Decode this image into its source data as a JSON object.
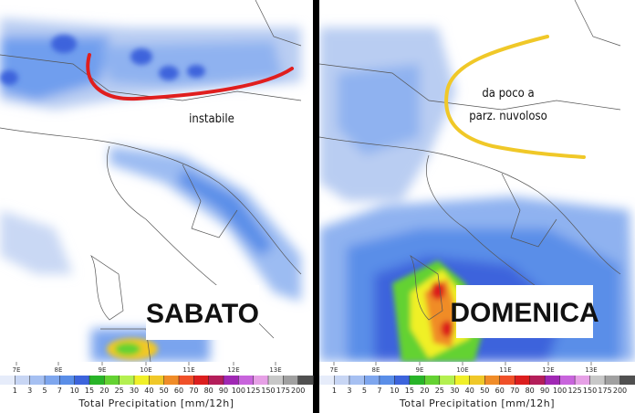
{
  "panels": [
    {
      "day_label": "SABATO",
      "annotation": [
        "instabile"
      ],
      "longitudes": [
        "7E",
        "8E",
        "9E",
        "10E",
        "11E",
        "12E",
        "13E"
      ],
      "colorbar": {
        "labels": [
          1,
          3,
          5,
          7,
          10,
          15,
          20,
          25,
          30,
          40,
          50,
          60,
          70,
          80,
          90,
          100,
          125,
          150,
          175,
          200
        ],
        "title": "Total Precipitation [mm/12h]"
      }
    },
    {
      "day_label": "DOMENICA",
      "annotation": [
        "da poco a",
        "parz. nuvoloso"
      ],
      "longitudes": [
        "7E",
        "8E",
        "9E",
        "10E",
        "11E",
        "12E",
        "13E"
      ],
      "colorbar": {
        "labels": [
          1,
          3,
          5,
          7,
          10,
          15,
          20,
          25,
          30,
          40,
          50,
          60,
          70,
          80,
          90,
          100,
          125,
          150,
          175,
          200
        ],
        "title": "Total Precipitation [mm/12h]"
      }
    }
  ]
}
